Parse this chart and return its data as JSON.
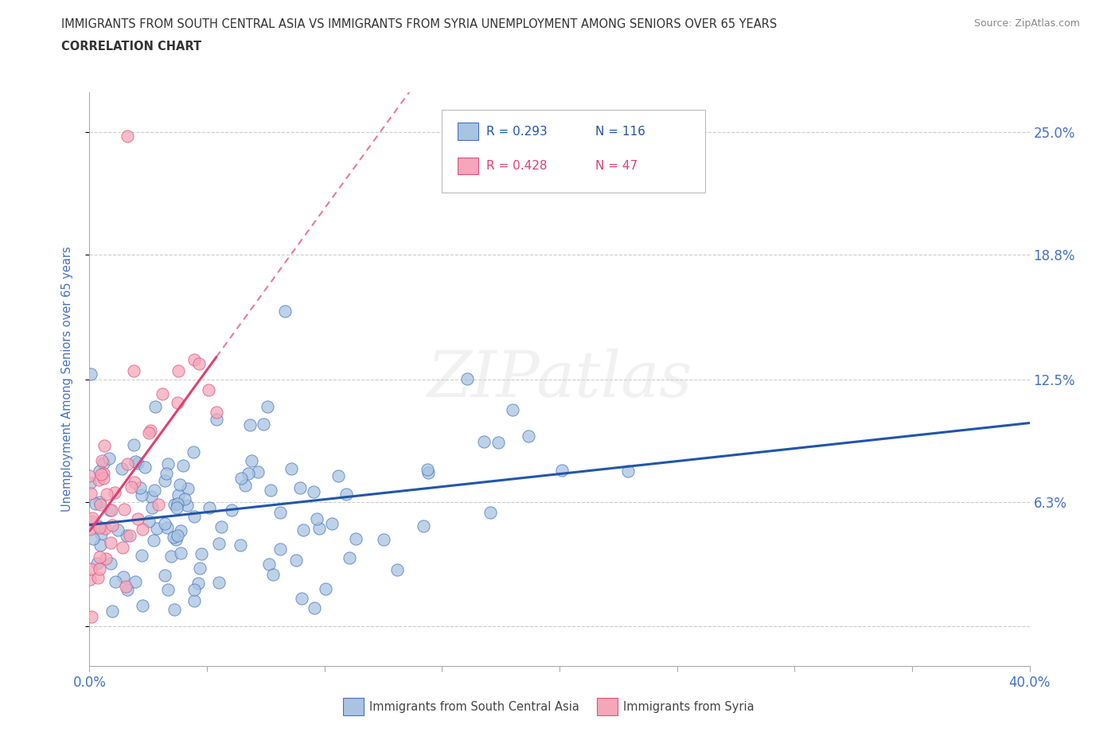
{
  "title_line1": "IMMIGRANTS FROM SOUTH CENTRAL ASIA VS IMMIGRANTS FROM SYRIA UNEMPLOYMENT AMONG SENIORS OVER 65 YEARS",
  "title_line2": "CORRELATION CHART",
  "source_text": "Source: ZipAtlas.com",
  "ylabel": "Unemployment Among Seniors over 65 years",
  "xlim": [
    0.0,
    0.4
  ],
  "ylim": [
    -0.02,
    0.27
  ],
  "ytick_positions": [
    0.0,
    0.063,
    0.125,
    0.188,
    0.25
  ],
  "ytick_labels": [
    "",
    "6.3%",
    "12.5%",
    "18.8%",
    "25.0%"
  ],
  "xtick_positions": [
    0.0,
    0.05,
    0.1,
    0.15,
    0.2,
    0.25,
    0.3,
    0.35,
    0.4
  ],
  "xtick_labels": [
    "0.0%",
    "",
    "",
    "",
    "",
    "",
    "",
    "",
    "40.0%"
  ],
  "color_asia": "#a8c4e0",
  "color_asia_edge": "#4472c4",
  "color_syria": "#f4a7b9",
  "color_syria_edge": "#e05080",
  "line_color_asia": "#2255aa",
  "line_color_syria": "#e04070",
  "watermark": "ZIPatlas",
  "legend_R_asia": "R = 0.293",
  "legend_N_asia": "N = 116",
  "legend_R_syria": "R = 0.428",
  "legend_N_syria": "N = 47",
  "title_color": "#333333",
  "axis_label_color": "#4472c4",
  "tick_color": "#4472c4",
  "grid_color": "#cccccc",
  "bottom_legend_label1": "Immigrants from South Central Asia",
  "bottom_legend_label2": "Immigrants from Syria"
}
